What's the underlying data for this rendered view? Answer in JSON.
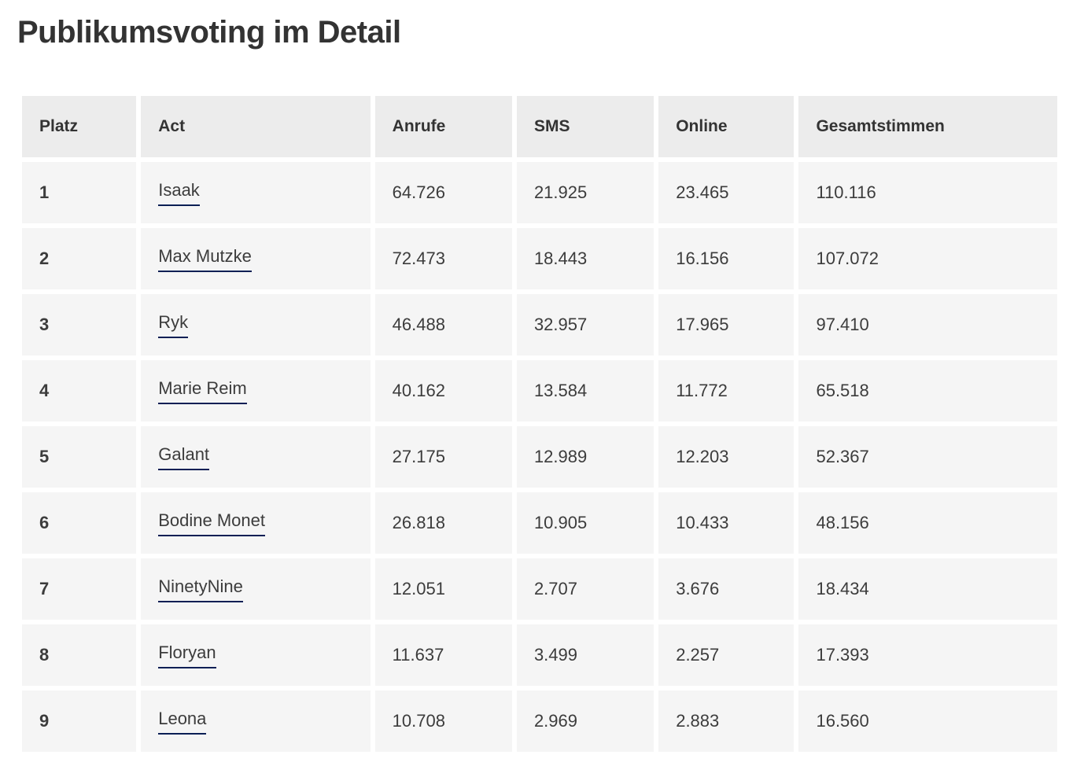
{
  "page": {
    "title": "Publikumsvoting im Detail"
  },
  "table": {
    "headers": [
      "Platz",
      "Act",
      "Anrufe",
      "SMS",
      "Online",
      "Gesamtstimmen"
    ],
    "rows": [
      {
        "platz": "1",
        "act": "Isaak",
        "anrufe": "64.726",
        "sms": "21.925",
        "online": "23.465",
        "gesamt": "110.116"
      },
      {
        "platz": "2",
        "act": "Max Mutzke",
        "anrufe": "72.473",
        "sms": "18.443",
        "online": "16.156",
        "gesamt": "107.072"
      },
      {
        "platz": "3",
        "act": "Ryk",
        "anrufe": "46.488",
        "sms": "32.957",
        "online": "17.965",
        "gesamt": "97.410"
      },
      {
        "platz": "4",
        "act": "Marie Reim",
        "anrufe": "40.162",
        "sms": "13.584",
        "online": "11.772",
        "gesamt": "65.518"
      },
      {
        "platz": "5",
        "act": "Galant",
        "anrufe": "27.175",
        "sms": "12.989",
        "online": "12.203",
        "gesamt": "52.367"
      },
      {
        "platz": "6",
        "act": "Bodine Monet",
        "anrufe": "26.818",
        "sms": "10.905",
        "online": "10.433",
        "gesamt": "48.156"
      },
      {
        "platz": "7",
        "act": "NinetyNine",
        "anrufe": "12.051",
        "sms": "2.707",
        "online": "3.676",
        "gesamt": "18.434"
      },
      {
        "platz": "8",
        "act": "Floryan",
        "anrufe": "11.637",
        "sms": "3.499",
        "online": "2.257",
        "gesamt": "17.393"
      },
      {
        "platz": "9",
        "act": "Leona",
        "anrufe": "10.708",
        "sms": "2.969",
        "online": "2.883",
        "gesamt": "16.560"
      }
    ]
  },
  "colors": {
    "header_bg": "#ececec",
    "row_bg": "#f5f5f5",
    "text": "#3c3c3c",
    "title": "#333333",
    "link_underline": "#0a1f55",
    "page_bg": "#ffffff"
  }
}
